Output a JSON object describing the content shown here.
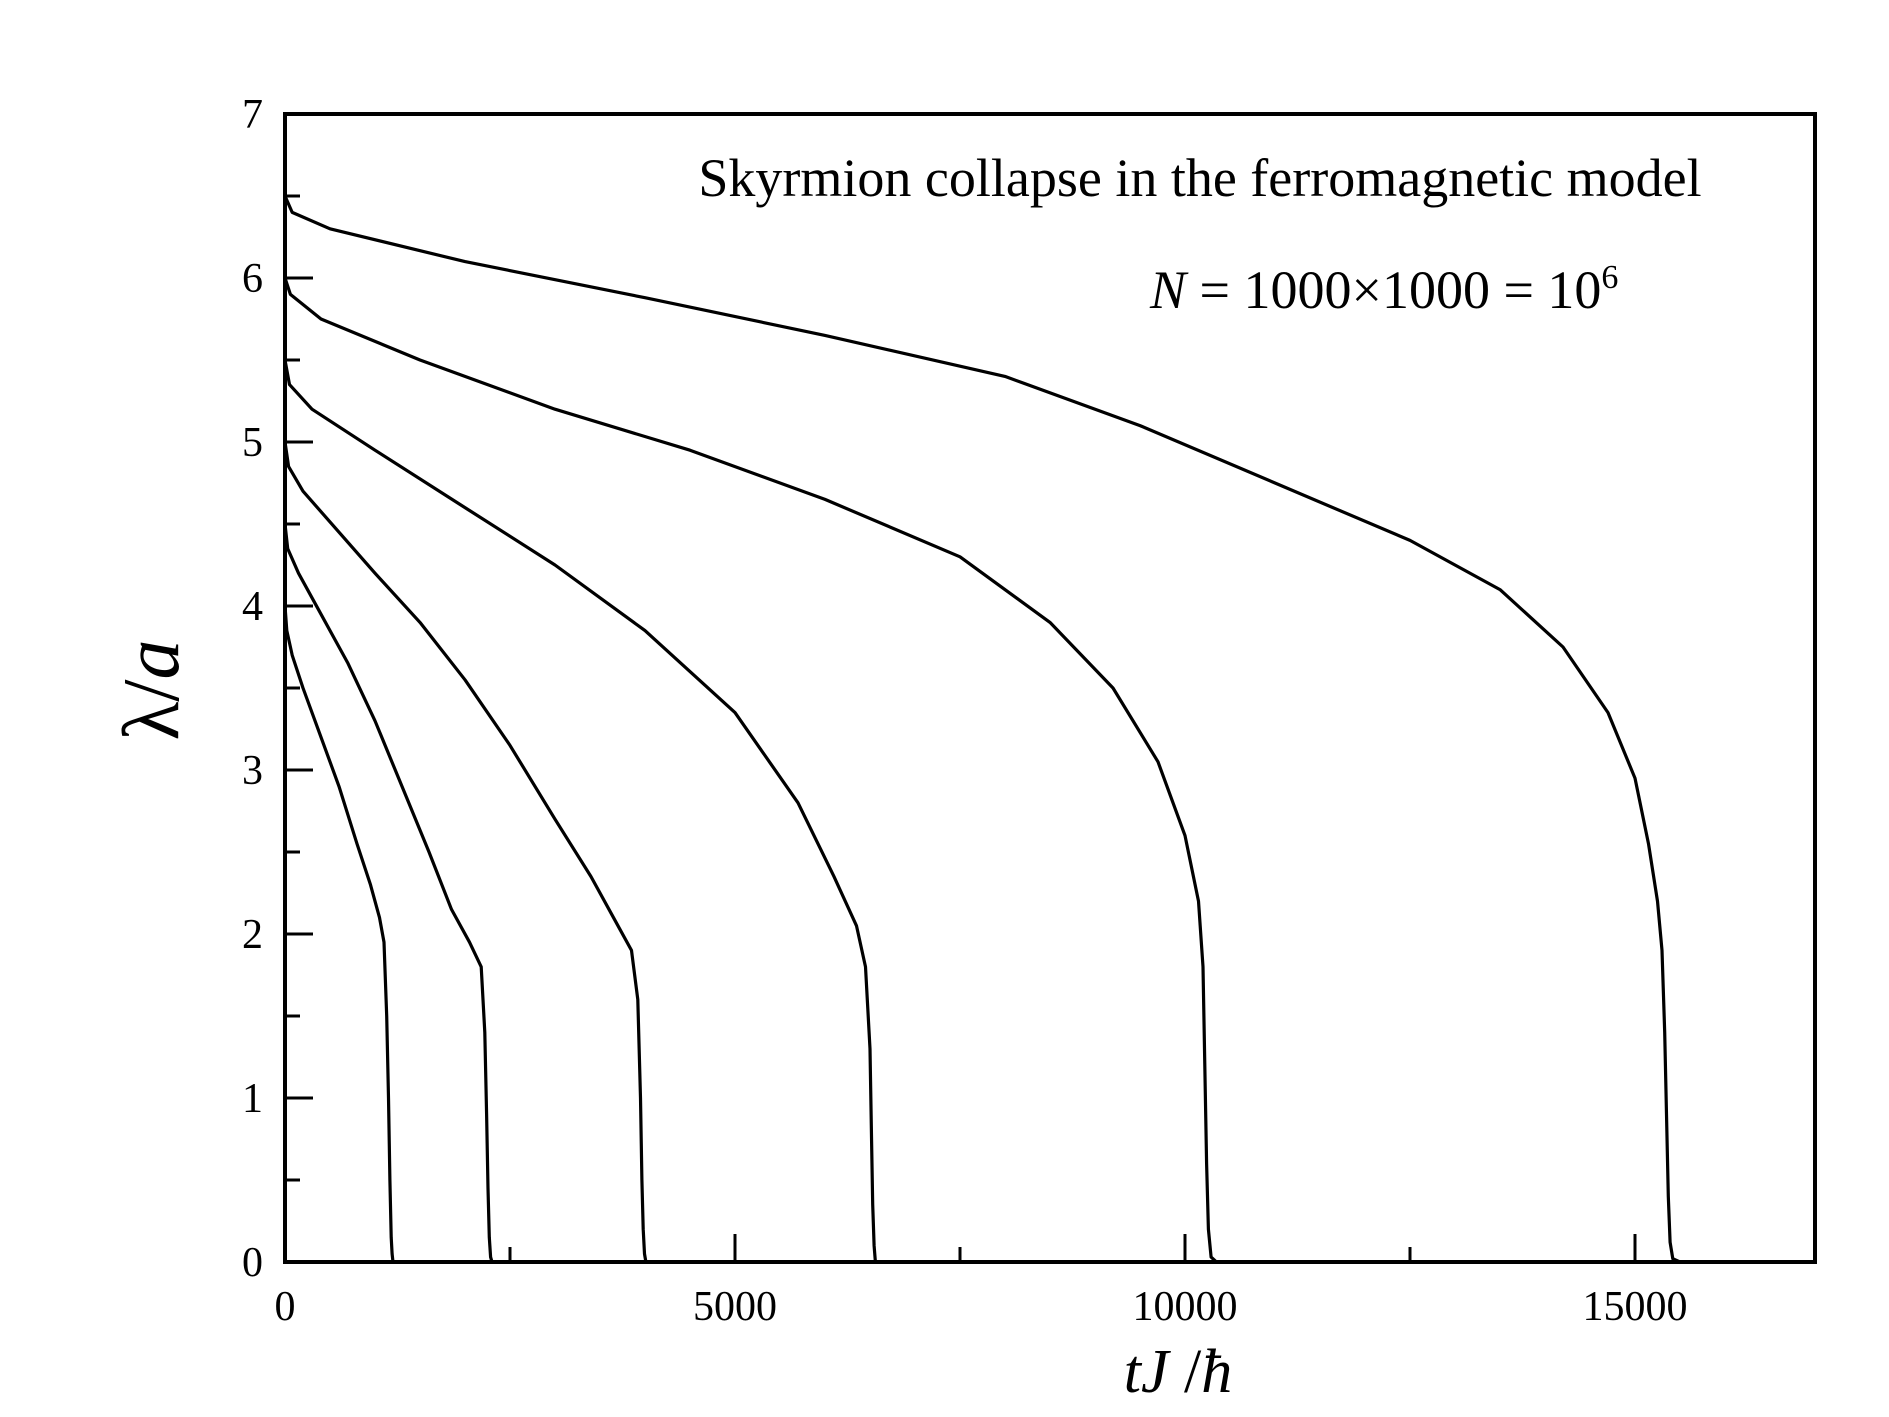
{
  "chart_data": {
    "type": "line",
    "title": "",
    "annotations": {
      "line1": "Skyrmion collapse in the ferromagnetic model",
      "line2_var": "N",
      "line2_text": " = 1000×1000 = 10",
      "line2_sup": "6"
    },
    "xlabel": {
      "t": "t",
      "J": "J",
      "slash": " /",
      "hbar": "ħ"
    },
    "ylabel": {
      "lambda": "λ",
      "slash": "/",
      "a": "a"
    },
    "xlim": [
      0,
      17000
    ],
    "ylim": [
      0,
      7
    ],
    "xticks": [
      0,
      5000,
      10000,
      15000
    ],
    "xtick_labels": [
      "0",
      "5000",
      "10000",
      "15000"
    ],
    "x_minor_ticks": [
      2500,
      7500,
      12500
    ],
    "yticks": [
      0,
      1,
      2,
      3,
      4,
      5,
      6,
      7
    ],
    "ytick_labels": [
      "0",
      "1",
      "2",
      "3",
      "4",
      "5",
      "6",
      "7"
    ],
    "y_minor_ticks": [
      0.5,
      1.5,
      2.5,
      3.5,
      4.5,
      5.5,
      6.5
    ],
    "grid": false,
    "line_color": "#000000",
    "series": [
      {
        "x": [
          0,
          20,
          80,
          200,
          400,
          600,
          800,
          950,
          1050,
          1100,
          1130,
          1150,
          1165,
          1180,
          1190,
          1200,
          1220,
          1260,
          1350
        ],
        "y": [
          4.0,
          3.85,
          3.7,
          3.5,
          3.2,
          2.9,
          2.55,
          2.3,
          2.1,
          1.95,
          1.5,
          1.0,
          0.5,
          0.15,
          0.05,
          0.0,
          0.0,
          0.0,
          0.0
        ]
      },
      {
        "x": [
          0,
          30,
          150,
          400,
          700,
          1000,
          1300,
          1600,
          1850,
          2050,
          2180,
          2220,
          2240,
          2255,
          2270,
          2285,
          2300,
          2350,
          2500
        ],
        "y": [
          4.5,
          4.35,
          4.2,
          3.95,
          3.65,
          3.3,
          2.9,
          2.5,
          2.15,
          1.95,
          1.8,
          1.4,
          0.9,
          0.45,
          0.15,
          0.03,
          0.0,
          0.0,
          0.0
        ]
      },
      {
        "x": [
          0,
          40,
          200,
          600,
          1000,
          1500,
          2000,
          2500,
          3000,
          3400,
          3700,
          3850,
          3920,
          3950,
          3965,
          3980,
          3995,
          4010,
          4100,
          4300
        ],
        "y": [
          5.0,
          4.85,
          4.7,
          4.45,
          4.2,
          3.9,
          3.55,
          3.15,
          2.7,
          2.35,
          2.05,
          1.9,
          1.6,
          1.0,
          0.5,
          0.2,
          0.05,
          0.0,
          0.0,
          0.0
        ]
      },
      {
        "x": [
          0,
          50,
          300,
          1000,
          2000,
          3000,
          4000,
          5000,
          5700,
          6100,
          6350,
          6450,
          6500,
          6515,
          6530,
          6545,
          6560,
          6600,
          6800
        ],
        "y": [
          5.5,
          5.35,
          5.2,
          4.95,
          4.6,
          4.25,
          3.85,
          3.35,
          2.8,
          2.35,
          2.05,
          1.8,
          1.3,
          0.8,
          0.35,
          0.1,
          0.0,
          0.0,
          0.0
        ]
      },
      {
        "x": [
          0,
          60,
          400,
          1500,
          3000,
          4500,
          6000,
          7500,
          8500,
          9200,
          9700,
          10000,
          10150,
          10200,
          10220,
          10240,
          10260,
          10290,
          10350,
          10600
        ],
        "y": [
          6.0,
          5.9,
          5.75,
          5.5,
          5.2,
          4.95,
          4.65,
          4.3,
          3.9,
          3.5,
          3.05,
          2.6,
          2.2,
          1.8,
          1.2,
          0.6,
          0.2,
          0.03,
          0.0,
          0.0
        ]
      },
      {
        "x": [
          0,
          80,
          500,
          2000,
          4000,
          6000,
          8000,
          9500,
          11000,
          12500,
          13500,
          14200,
          14700,
          15000,
          15150,
          15250,
          15300,
          15330,
          15350,
          15370,
          15390,
          15420,
          15500,
          15800
        ],
        "y": [
          6.5,
          6.4,
          6.3,
          6.1,
          5.88,
          5.65,
          5.4,
          5.1,
          4.75,
          4.4,
          4.1,
          3.75,
          3.35,
          2.95,
          2.55,
          2.2,
          1.9,
          1.4,
          0.9,
          0.4,
          0.12,
          0.02,
          0.0,
          0.0
        ]
      }
    ]
  }
}
